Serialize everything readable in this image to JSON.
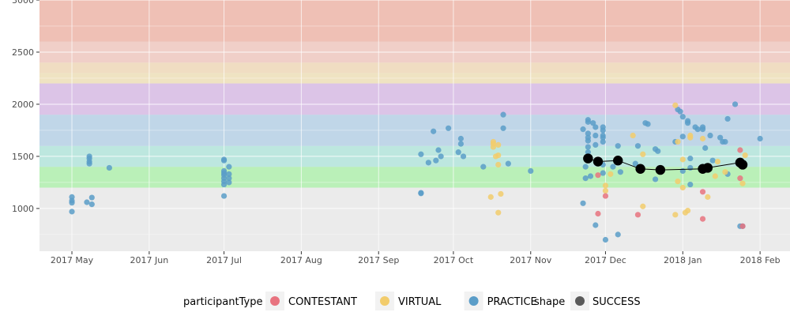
{
  "chart_data": {
    "type": "scatter",
    "title": "",
    "xlabel": "",
    "ylabel": "",
    "x_range": [
      "2017-04-18",
      "2018-02-13"
    ],
    "ylim": [
      590,
      3000
    ],
    "grid": true,
    "legend_position": "bottom",
    "y_ticks": [
      1000,
      1500,
      2000,
      2500,
      3000
    ],
    "x_ticks": [
      {
        "date": "2017-05-01",
        "label": "2017 May"
      },
      {
        "date": "2017-06-01",
        "label": "2017 Jun"
      },
      {
        "date": "2017-07-01",
        "label": "2017 Jul"
      },
      {
        "date": "2017-08-01",
        "label": "2017 Aug"
      },
      {
        "date": "2017-09-01",
        "label": "2017 Sep"
      },
      {
        "date": "2017-10-01",
        "label": "2017 Oct"
      },
      {
        "date": "2017-11-01",
        "label": "2017 Nov"
      },
      {
        "date": "2017-12-01",
        "label": "2017 Dec"
      },
      {
        "date": "2018-01-01",
        "label": "2018 Jan"
      },
      {
        "date": "2018-02-01",
        "label": "2018 Feb"
      }
    ],
    "bands": [
      {
        "from": 1200,
        "to": 1400,
        "color": "#baf0b8"
      },
      {
        "from": 1400,
        "to": 1600,
        "color": "#bde7df"
      },
      {
        "from": 1600,
        "to": 1900,
        "color": "#c0d6e8"
      },
      {
        "from": 1900,
        "to": 2200,
        "color": "#dcc4e7"
      },
      {
        "from": 2200,
        "to": 2300,
        "color": "#efe3c2"
      },
      {
        "from": 2300,
        "to": 2400,
        "color": "#f0ddc2"
      },
      {
        "from": 2400,
        "to": 2600,
        "color": "#f0cfc8"
      },
      {
        "from": 2600,
        "to": 3000,
        "color": "#efc0b5"
      }
    ],
    "legend": {
      "participant_title": "participantType",
      "participant_items": [
        {
          "label": "CONTESTANT",
          "color": "#e8737f"
        },
        {
          "label": "VIRTUAL",
          "color": "#f2cc6c"
        },
        {
          "label": "PRACTICE",
          "color": "#5b9dc8"
        }
      ],
      "shape_title": "shape",
      "shape_items": [
        {
          "label": "SUCCESS",
          "color": "#5a5a5a"
        }
      ]
    },
    "series": [
      {
        "name": "PRACTICE",
        "color": "#5b9dc8",
        "points": [
          [
            "2017-05-01",
            1110
          ],
          [
            "2017-05-01",
            1075
          ],
          [
            "2017-05-01",
            1055
          ],
          [
            "2017-05-01",
            970
          ],
          [
            "2017-05-08",
            1500
          ],
          [
            "2017-05-08",
            1480
          ],
          [
            "2017-05-08",
            1450
          ],
          [
            "2017-05-08",
            1430
          ],
          [
            "2017-05-07",
            1060
          ],
          [
            "2017-05-09",
            1105
          ],
          [
            "2017-05-09",
            1040
          ],
          [
            "2017-05-16",
            1390
          ],
          [
            "2017-07-01",
            1470
          ],
          [
            "2017-07-01",
            1460
          ],
          [
            "2017-07-01",
            1360
          ],
          [
            "2017-07-01",
            1340
          ],
          [
            "2017-07-01",
            1320
          ],
          [
            "2017-07-01",
            1290
          ],
          [
            "2017-07-01",
            1260
          ],
          [
            "2017-07-01",
            1230
          ],
          [
            "2017-07-01",
            1120
          ],
          [
            "2017-07-03",
            1400
          ],
          [
            "2017-07-03",
            1330
          ],
          [
            "2017-07-03",
            1290
          ],
          [
            "2017-07-03",
            1250
          ],
          [
            "2017-09-18",
            1150
          ],
          [
            "2017-09-18",
            1145
          ],
          [
            "2017-09-18",
            1520
          ],
          [
            "2017-09-21",
            1440
          ],
          [
            "2017-09-23",
            1740
          ],
          [
            "2017-09-24",
            1460
          ],
          [
            "2017-09-25",
            1560
          ],
          [
            "2017-09-26",
            1500
          ],
          [
            "2017-09-29",
            1770
          ],
          [
            "2017-10-03",
            1540
          ],
          [
            "2017-10-04",
            1620
          ],
          [
            "2017-10-04",
            1670
          ],
          [
            "2017-10-05",
            1500
          ],
          [
            "2017-10-13",
            1400
          ],
          [
            "2017-10-21",
            1900
          ],
          [
            "2017-10-21",
            1770
          ],
          [
            "2017-10-23",
            1430
          ],
          [
            "2017-11-01",
            1360
          ],
          [
            "2017-11-22",
            1050
          ],
          [
            "2017-11-22",
            1760
          ],
          [
            "2017-11-23",
            1400
          ],
          [
            "2017-11-23",
            1290
          ],
          [
            "2017-11-24",
            1850
          ],
          [
            "2017-11-24",
            1830
          ],
          [
            "2017-11-24",
            1720
          ],
          [
            "2017-11-24",
            1680
          ],
          [
            "2017-11-24",
            1650
          ],
          [
            "2017-11-24",
            1590
          ],
          [
            "2017-11-24",
            1540
          ],
          [
            "2017-11-24",
            1480
          ],
          [
            "2017-11-25",
            1310
          ],
          [
            "2017-11-26",
            1820
          ],
          [
            "2017-11-27",
            1780
          ],
          [
            "2017-11-27",
            1700
          ],
          [
            "2017-11-27",
            1610
          ],
          [
            "2017-11-27",
            840
          ],
          [
            "2017-11-30",
            1780
          ],
          [
            "2017-11-30",
            1750
          ],
          [
            "2017-11-30",
            1700
          ],
          [
            "2017-11-30",
            1680
          ],
          [
            "2017-11-30",
            1640
          ],
          [
            "2017-11-30",
            1420
          ],
          [
            "2017-11-30",
            1340
          ],
          [
            "2017-12-04",
            1400
          ],
          [
            "2017-12-06",
            1600
          ],
          [
            "2017-12-07",
            1350
          ],
          [
            "2017-12-01",
            700
          ],
          [
            "2017-12-06",
            750
          ],
          [
            "2017-12-13",
            1430
          ],
          [
            "2017-12-14",
            1600
          ],
          [
            "2017-12-17",
            1820
          ],
          [
            "2017-12-18",
            1810
          ],
          [
            "2017-12-21",
            1570
          ],
          [
            "2017-12-22",
            1550
          ],
          [
            "2017-12-21",
            1280
          ],
          [
            "2017-12-29",
            1640
          ],
          [
            "2017-12-30",
            1950
          ],
          [
            "2017-12-31",
            1930
          ],
          [
            "2018-01-01",
            1880
          ],
          [
            "2018-01-01",
            1690
          ],
          [
            "2018-01-01",
            1360
          ],
          [
            "2018-01-03",
            1840
          ],
          [
            "2018-01-03",
            1820
          ],
          [
            "2018-01-04",
            1480
          ],
          [
            "2018-01-04",
            1390
          ],
          [
            "2018-01-04",
            1230
          ],
          [
            "2018-01-06",
            1780
          ],
          [
            "2018-01-07",
            1760
          ],
          [
            "2018-01-09",
            1780
          ],
          [
            "2018-01-09",
            1760
          ],
          [
            "2018-01-10",
            1580
          ],
          [
            "2018-01-12",
            1700
          ],
          [
            "2018-01-13",
            1460
          ],
          [
            "2018-01-16",
            1680
          ],
          [
            "2018-01-17",
            1640
          ],
          [
            "2018-01-18",
            1640
          ],
          [
            "2018-01-19",
            1860
          ],
          [
            "2018-01-19",
            1330
          ],
          [
            "2018-01-22",
            2000
          ],
          [
            "2018-01-24",
            830
          ],
          [
            "2018-01-25",
            830
          ],
          [
            "2018-02-01",
            1670
          ]
        ]
      },
      {
        "name": "VIRTUAL",
        "color": "#f2cc6c",
        "points": [
          [
            "2017-10-17",
            1640
          ],
          [
            "2017-10-17",
            1620
          ],
          [
            "2017-10-17",
            1590
          ],
          [
            "2017-10-18",
            1500
          ],
          [
            "2017-10-19",
            1420
          ],
          [
            "2017-10-19",
            1510
          ],
          [
            "2017-10-19",
            1610
          ],
          [
            "2017-10-16",
            1110
          ],
          [
            "2017-10-20",
            1140
          ],
          [
            "2017-10-19",
            960
          ],
          [
            "2017-12-01",
            1170
          ],
          [
            "2017-12-01",
            1220
          ],
          [
            "2017-12-03",
            1330
          ],
          [
            "2017-12-12",
            1700
          ],
          [
            "2017-12-16",
            1020
          ],
          [
            "2017-12-16",
            1520
          ],
          [
            "2017-12-29",
            1990
          ],
          [
            "2017-12-30",
            1640
          ],
          [
            "2017-12-29",
            940
          ],
          [
            "2017-12-30",
            1260
          ],
          [
            "2018-01-01",
            1200
          ],
          [
            "2018-01-01",
            1470
          ],
          [
            "2018-01-02",
            960
          ],
          [
            "2018-01-03",
            980
          ],
          [
            "2018-01-04",
            1680
          ],
          [
            "2018-01-04",
            1700
          ],
          [
            "2018-01-09",
            1670
          ],
          [
            "2018-01-11",
            1110
          ],
          [
            "2018-01-14",
            1310
          ],
          [
            "2018-01-15",
            1450
          ],
          [
            "2018-01-18",
            1350
          ],
          [
            "2018-01-25",
            1240
          ],
          [
            "2018-01-26",
            1510
          ]
        ]
      },
      {
        "name": "CONTESTANT",
        "color": "#e8737f",
        "points": [
          [
            "2017-11-28",
            1320
          ],
          [
            "2017-11-28",
            950
          ],
          [
            "2017-12-01",
            1120
          ],
          [
            "2017-12-14",
            940
          ],
          [
            "2018-01-09",
            1160
          ],
          [
            "2018-01-09",
            900
          ],
          [
            "2018-01-24",
            1560
          ],
          [
            "2018-01-24",
            1290
          ],
          [
            "2018-01-25",
            830
          ]
        ]
      }
    ],
    "success_line": {
      "name": "SUCCESS",
      "color": "#000000",
      "points": [
        [
          "2017-11-24",
          1480
        ],
        [
          "2017-11-28",
          1450
        ],
        [
          "2017-12-06",
          1460
        ],
        [
          "2017-12-15",
          1380
        ],
        [
          "2017-12-23",
          1370
        ],
        [
          "2018-01-09",
          1380
        ],
        [
          "2018-01-11",
          1390
        ],
        [
          "2018-01-24",
          1440
        ],
        [
          "2018-01-25",
          1420
        ]
      ]
    }
  }
}
